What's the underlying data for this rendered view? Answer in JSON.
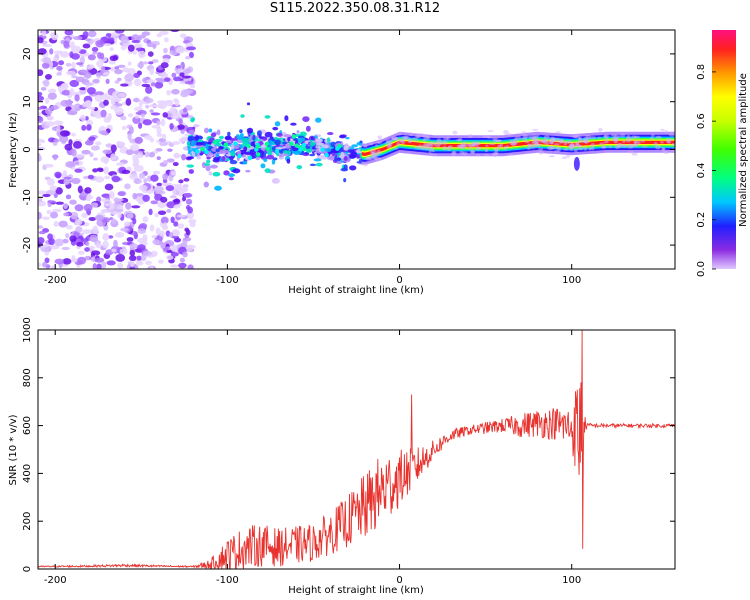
{
  "title": "S115.2022.350.08.31.R12",
  "colors": {
    "snr_line": "#e8322e",
    "spectrum_low": "#cc99ff",
    "spectrum_mid": "#3300ff",
    "spectrum_high": "#ff2020"
  },
  "chart_data": [
    {
      "type": "heatmap",
      "title": "",
      "xlabel": "Height of straight line (km)",
      "ylabel": "Frequency (Hz)",
      "xlim": [
        -210,
        160
      ],
      "ylim": [
        -25,
        25
      ],
      "x_ticks": [
        -200,
        -100,
        0,
        100
      ],
      "y_ticks": [
        -20,
        -10,
        0,
        10,
        20
      ],
      "colorbar": {
        "label": "Normalized spectral amplitude",
        "range": [
          0,
          0.97
        ],
        "ticks": [
          "0.0",
          "0.2",
          "0.4",
          "0.6",
          "0.8"
        ],
        "tick_values": [
          0,
          0.2,
          0.4,
          0.6,
          0.8
        ]
      },
      "regions": [
        {
          "x_start": -210,
          "x_end": -120,
          "freq_spread": 25,
          "amplitude": 0.05,
          "description_level": "noise"
        },
        {
          "x_start": -120,
          "x_end": -20,
          "freq_spread": 5,
          "amplitude": 0.25
        },
        {
          "x_start": -20,
          "x_end": 160,
          "freq_spread": 1.5,
          "amplitude": 0.9
        }
      ],
      "ridge_frequency_hz": [
        {
          "x": -120,
          "y": 0.5
        },
        {
          "x": -100,
          "y": 0.0
        },
        {
          "x": -80,
          "y": 0.5
        },
        {
          "x": -60,
          "y": 1.0
        },
        {
          "x": -40,
          "y": 0.0
        },
        {
          "x": -20,
          "y": -1.0
        },
        {
          "x": -10,
          "y": 0.0
        },
        {
          "x": 0,
          "y": 1.5
        },
        {
          "x": 20,
          "y": 0.8
        },
        {
          "x": 60,
          "y": 0.8
        },
        {
          "x": 80,
          "y": 1.5
        },
        {
          "x": 100,
          "y": 1.0
        },
        {
          "x": 120,
          "y": 1.5
        },
        {
          "x": 160,
          "y": 1.5
        }
      ]
    },
    {
      "type": "line",
      "title": "",
      "xlabel": "Height of straight line (km)",
      "ylabel": "SNR (10 * v/v)",
      "xlim": [
        -210,
        160
      ],
      "ylim": [
        0,
        1000
      ],
      "x_ticks": [
        -200,
        -100,
        0,
        100
      ],
      "y_ticks": [
        0,
        200,
        400,
        600,
        800,
        1000
      ],
      "series": [
        {
          "name": "",
          "x": [
            -210,
            -180,
            -160,
            -140,
            -120,
            -110,
            -100,
            -90,
            -80,
            -70,
            -60,
            -50,
            -40,
            -30,
            -20,
            -10,
            0,
            10,
            20,
            30,
            40,
            50,
            60,
            70,
            80,
            90,
            100,
            105,
            108,
            110,
            120,
            130,
            140,
            150,
            160
          ],
          "values": [
            10,
            12,
            15,
            12,
            10,
            20,
            60,
            90,
            100,
            90,
            100,
            110,
            150,
            200,
            260,
            330,
            380,
            430,
            500,
            560,
            580,
            590,
            600,
            600,
            610,
            610,
            590,
            580,
            600,
            600,
            600,
            600,
            600,
            600,
            600
          ],
          "noise_amplitude": [
            3,
            4,
            6,
            4,
            3,
            20,
            70,
            90,
            90,
            80,
            80,
            80,
            90,
            110,
            140,
            160,
            120,
            80,
            40,
            25,
            20,
            25,
            30,
            50,
            60,
            70,
            90,
            300,
            20,
            10,
            8,
            8,
            8,
            8,
            8
          ]
        }
      ],
      "spikes": [
        {
          "x": 7,
          "y": 730
        },
        {
          "x": 106,
          "y": 1000
        },
        {
          "x": 106.5,
          "y": 85
        }
      ]
    }
  ]
}
